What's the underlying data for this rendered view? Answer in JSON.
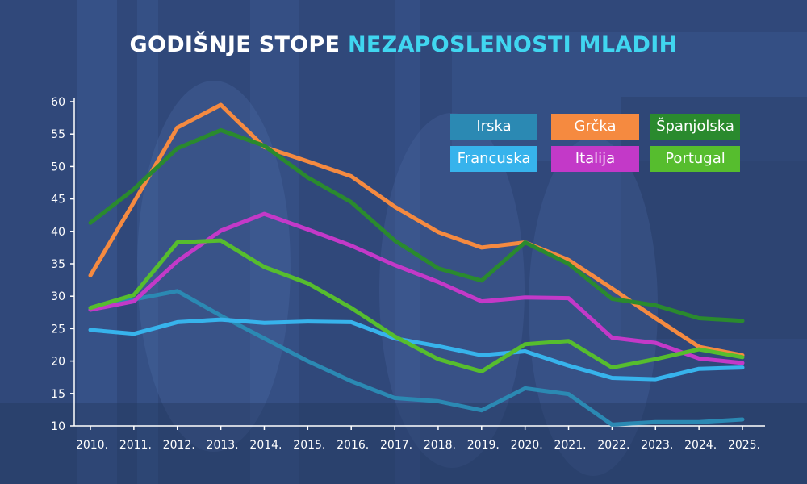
{
  "title": {
    "part1": "GODIŠNJE STOPE",
    "part2": "NEZAPOSLENOSTI MLADIH"
  },
  "chart_data": {
    "type": "line",
    "title": "GODIŠNJE STOPE NEZAPOSLENOSTI MLADIH",
    "x": [
      "2010.",
      "2011.",
      "2012.",
      "2013.",
      "2014.",
      "2015.",
      "2016.",
      "2017.",
      "2018.",
      "2019.",
      "2020.",
      "2021.",
      "2022.",
      "2023.",
      "2024.",
      "2025."
    ],
    "ylim": [
      10,
      60
    ],
    "yticks": [
      10,
      15,
      20,
      25,
      30,
      35,
      40,
      45,
      50,
      55,
      60
    ],
    "grid": false,
    "legend_position": "top-right",
    "series": [
      {
        "name": "Irska",
        "color": "#2b89b3",
        "values": [
          28.0,
          29.5,
          30.8,
          27.0,
          23.5,
          20.0,
          16.9,
          14.3,
          13.8,
          12.4,
          15.8,
          14.9,
          10.2,
          10.6,
          10.6,
          11.0
        ]
      },
      {
        "name": "Grčka",
        "color": "#f58a40",
        "values": [
          33.2,
          44.5,
          56.0,
          59.5,
          53.0,
          50.8,
          48.5,
          43.8,
          39.9,
          37.5,
          38.3,
          35.6,
          31.2,
          26.6,
          22.2,
          20.9
        ]
      },
      {
        "name": "Španjolska",
        "color": "#2a8a2e",
        "values": [
          41.3,
          46.5,
          52.8,
          55.6,
          53.2,
          48.3,
          44.5,
          38.6,
          34.3,
          32.4,
          38.3,
          35.0,
          29.6,
          28.6,
          26.6,
          26.2
        ]
      },
      {
        "name": "Francuska",
        "color": "#37b3ec",
        "values": [
          24.8,
          24.2,
          26.0,
          26.4,
          25.9,
          26.1,
          26.0,
          23.5,
          22.3,
          20.9,
          21.5,
          19.3,
          17.4,
          17.2,
          18.8,
          19.0
        ]
      },
      {
        "name": "Italija",
        "color": "#c339c8",
        "values": [
          27.9,
          29.2,
          35.4,
          40.1,
          42.7,
          40.3,
          37.8,
          34.8,
          32.2,
          29.2,
          29.8,
          29.7,
          23.6,
          22.8,
          20.4,
          19.7
        ]
      },
      {
        "name": "Portugal",
        "color": "#56bd2e",
        "values": [
          28.2,
          30.2,
          38.3,
          38.6,
          34.5,
          32.0,
          28.2,
          23.8,
          20.3,
          18.4,
          22.6,
          23.1,
          19.0,
          20.3,
          21.8,
          20.6
        ]
      }
    ]
  }
}
